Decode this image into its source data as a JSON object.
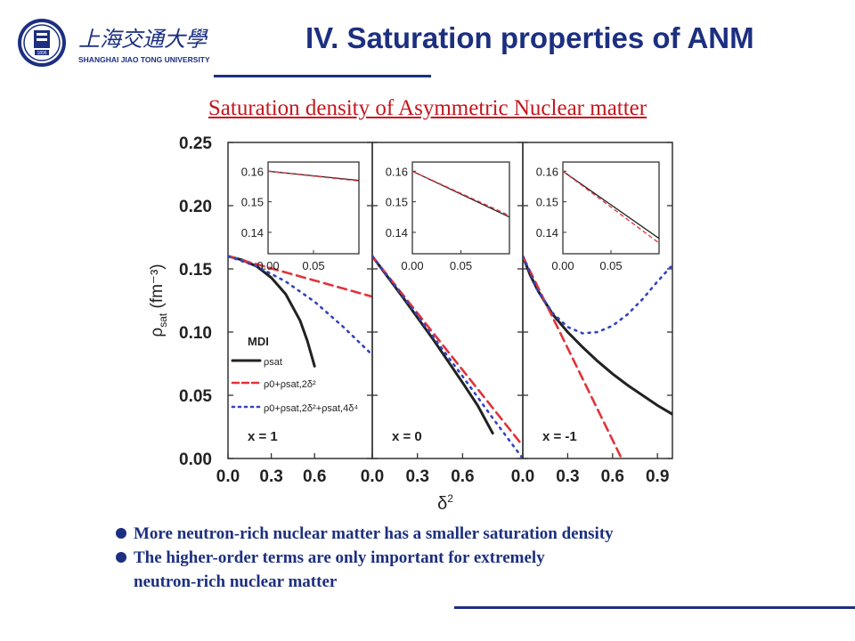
{
  "header": {
    "logo_text_cn": "上海交通大學",
    "logo_text_en": "SHANGHAI JIAO TONG UNIVERSITY",
    "logo_year": "1896",
    "title": "IV. Saturation properties of ANM"
  },
  "subtitle": "Saturation density of Asymmetric  Nuclear matter",
  "bullets": [
    "More neutron-rich nuclear matter has a smaller saturation density",
    "The higher-order terms are only important for extremely",
    "neutron-rich nuclear matter"
  ],
  "colors": {
    "title": "#1c2f80",
    "subtitle": "#c4161c",
    "bullets": "#1c2f80",
    "series_black": "#222222",
    "series_red": "#e0333a",
    "series_blue": "#3344bb"
  },
  "chart_data": {
    "type": "line",
    "xlabel": "δ²",
    "ylabel": "ρsat (fm⁻³)",
    "ylim": [
      0,
      0.25
    ],
    "yticks": [
      "0.00",
      "0.05",
      "0.10",
      "0.15",
      "0.20",
      "0.25"
    ],
    "legend_title": "MDI",
    "legend": [
      "ρsat",
      "ρ0+ρsat,2δ²",
      "ρ0+ρsat,2δ²+ρsat,4δ⁴"
    ],
    "panels": [
      {
        "label": "x = 1",
        "xlim": [
          0,
          1
        ],
        "xticks": [
          "0.0",
          "0.3",
          "0.6"
        ],
        "series": [
          {
            "style": "solid",
            "color": "black",
            "x": [
              0,
              0.1,
              0.2,
              0.3,
              0.4,
              0.5,
              0.55,
              0.6
            ],
            "y": [
              0.16,
              0.157,
              0.152,
              0.143,
              0.13,
              0.109,
              0.093,
              0.073
            ]
          },
          {
            "style": "dashed",
            "color": "red",
            "x": [
              0,
              1
            ],
            "y": [
              0.16,
              0.128
            ]
          },
          {
            "style": "dotted",
            "color": "blue",
            "x": [
              0,
              0.2,
              0.4,
              0.6,
              0.8,
              1.0
            ],
            "y": [
              0.16,
              0.152,
              0.14,
              0.124,
              0.104,
              0.082
            ]
          }
        ],
        "inset": {
          "xlim": [
            0,
            0.1
          ],
          "ylim": [
            0.133,
            0.163
          ],
          "xticks": [
            "0.00",
            "0.05"
          ],
          "yticks": [
            "0.14",
            "0.15",
            "0.16"
          ],
          "series": [
            {
              "style": "solid",
              "color": "black",
              "x": [
                0,
                0.1
              ],
              "y": [
                0.16,
                0.157
              ]
            },
            {
              "style": "dashed",
              "color": "red",
              "x": [
                0,
                0.1
              ],
              "y": [
                0.16,
                0.1568
              ]
            }
          ]
        }
      },
      {
        "label": "x = 0",
        "xlim": [
          0,
          1
        ],
        "xticks": [
          "0.0",
          "0.3",
          "0.6"
        ],
        "series": [
          {
            "style": "solid",
            "color": "black",
            "x": [
              0,
              0.2,
              0.4,
              0.6,
              0.7,
              0.8
            ],
            "y": [
              0.16,
              0.128,
              0.095,
              0.06,
              0.042,
              0.02
            ]
          },
          {
            "style": "dashed",
            "color": "red",
            "x": [
              0,
              1
            ],
            "y": [
              0.16,
              0.01
            ]
          },
          {
            "style": "dotted",
            "color": "blue",
            "x": [
              0,
              0.2,
              0.4,
              0.6,
              0.8,
              1.0
            ],
            "y": [
              0.16,
              0.129,
              0.097,
              0.065,
              0.032,
              0.0
            ]
          }
        ],
        "inset": {
          "xlim": [
            0,
            0.1
          ],
          "ylim": [
            0.133,
            0.163
          ],
          "xticks": [
            "0.00",
            "0.05"
          ],
          "yticks": [
            "0.14",
            "0.15",
            "0.16"
          ],
          "series": [
            {
              "style": "solid",
              "color": "black",
              "x": [
                0,
                0.1
              ],
              "y": [
                0.16,
                0.145
              ]
            },
            {
              "style": "dashed",
              "color": "red",
              "x": [
                0,
                0.1
              ],
              "y": [
                0.16,
                0.1455
              ]
            }
          ]
        }
      },
      {
        "label": "x = -1",
        "xlim": [
          0,
          1
        ],
        "xticks": [
          "0.0",
          "0.3",
          "0.6",
          "0.9"
        ],
        "series": [
          {
            "style": "solid",
            "color": "black",
            "x": [
              0,
              0.05,
              0.1,
              0.2,
              0.3,
              0.4,
              0.5,
              0.6,
              0.7,
              0.8,
              0.9,
              1.0
            ],
            "y": [
              0.16,
              0.145,
              0.133,
              0.114,
              0.1,
              0.088,
              0.077,
              0.067,
              0.058,
              0.05,
              0.042,
              0.035
            ]
          },
          {
            "style": "dashed",
            "color": "red",
            "x": [
              0,
              0.66
            ],
            "y": [
              0.16,
              0.0
            ]
          },
          {
            "style": "dotted",
            "color": "blue",
            "x": [
              0,
              0.1,
              0.2,
              0.3,
              0.4,
              0.5,
              0.6,
              0.7,
              0.8,
              0.9,
              1.0
            ],
            "y": [
              0.16,
              0.133,
              0.115,
              0.104,
              0.099,
              0.1,
              0.105,
              0.114,
              0.126,
              0.14,
              0.153
            ]
          }
        ],
        "inset": {
          "xlim": [
            0,
            0.1
          ],
          "ylim": [
            0.133,
            0.163
          ],
          "xticks": [
            "0.00",
            "0.05"
          ],
          "yticks": [
            "0.14",
            "0.15",
            "0.16"
          ],
          "series": [
            {
              "style": "solid",
              "color": "black",
              "x": [
                0,
                0.1
              ],
              "y": [
                0.16,
                0.138
              ]
            },
            {
              "style": "dashed",
              "color": "red",
              "x": [
                0,
                0.1
              ],
              "y": [
                0.16,
                0.1365
              ]
            }
          ]
        }
      }
    ]
  }
}
